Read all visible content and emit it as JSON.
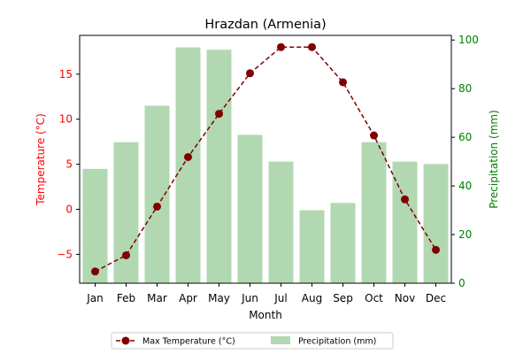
{
  "chart_data": {
    "type": "bar",
    "title": "Hrazdan (Armenia)",
    "xlabel": "Month",
    "categories": [
      "Jan",
      "Feb",
      "Mar",
      "Apr",
      "May",
      "Jun",
      "Jul",
      "Aug",
      "Sep",
      "Oct",
      "Nov",
      "Dec"
    ],
    "series": [
      {
        "name": "Max Temperature (°C)",
        "type": "line",
        "axis": "left",
        "color": "#800000",
        "style": "dashed",
        "marker": "circle",
        "values": [
          -6.9,
          -5.1,
          0.3,
          5.8,
          10.6,
          15.1,
          18.0,
          18.0,
          14.1,
          8.2,
          1.1,
          -4.5
        ]
      },
      {
        "name": "Precipitation (mm)",
        "type": "bar",
        "axis": "right",
        "color": "#b2d8b2",
        "values": [
          47,
          58,
          73,
          97,
          96,
          61,
          50,
          30,
          33,
          58,
          50,
          49
        ]
      }
    ],
    "left_axis": {
      "label": "Temperature (°C)",
      "color": "#ff0000",
      "range": [
        -8.2,
        19.3
      ],
      "ticks": [
        -5,
        0,
        5,
        10,
        15
      ]
    },
    "right_axis": {
      "label": "Precipitation (mm)",
      "color": "#008000",
      "range": [
        0,
        101.9
      ],
      "ticks": [
        0,
        20,
        40,
        60,
        80,
        100
      ]
    },
    "grid": false,
    "legend_position": "bottom-center"
  }
}
